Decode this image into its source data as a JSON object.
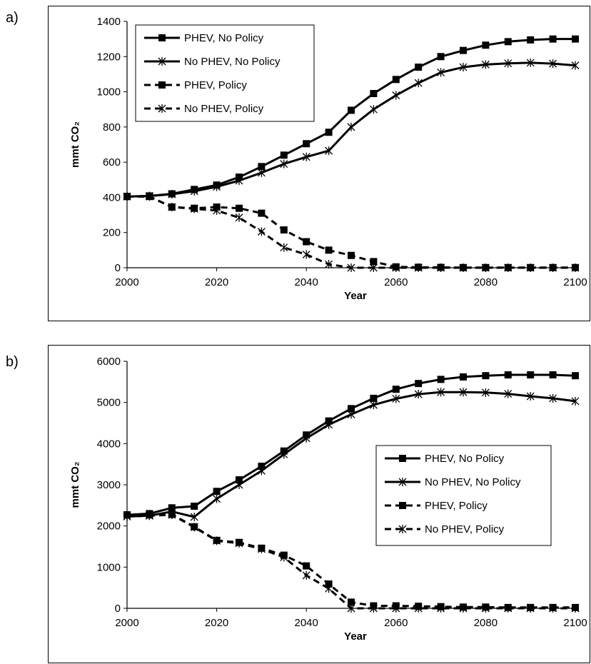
{
  "chart_data": [
    {
      "type": "line",
      "panel_label": "a)",
      "xlabel": "Year",
      "ylabel": "mmt CO₂",
      "xlim": [
        2000,
        2100
      ],
      "ylim": [
        0,
        1400
      ],
      "xticks": [
        2000,
        2020,
        2040,
        2060,
        2080,
        2100
      ],
      "yticks": [
        0,
        200,
        400,
        600,
        800,
        1000,
        1200,
        1400
      ],
      "grid": false,
      "legend_position": "top-left",
      "x": [
        2000,
        2005,
        2010,
        2015,
        2020,
        2025,
        2030,
        2035,
        2040,
        2045,
        2050,
        2055,
        2060,
        2065,
        2070,
        2075,
        2080,
        2085,
        2090,
        2095,
        2100
      ],
      "series": [
        {
          "name": "PHEV, No Policy",
          "style": "solid",
          "marker": "square",
          "values": [
            405,
            408,
            420,
            445,
            470,
            515,
            575,
            640,
            705,
            770,
            895,
            990,
            1070,
            1140,
            1200,
            1235,
            1265,
            1285,
            1295,
            1300,
            1300
          ]
        },
        {
          "name": "No PHEV, No Policy",
          "style": "solid",
          "marker": "star",
          "values": [
            405,
            408,
            418,
            435,
            460,
            495,
            540,
            590,
            630,
            665,
            800,
            900,
            980,
            1050,
            1110,
            1140,
            1155,
            1162,
            1165,
            1160,
            1150
          ]
        },
        {
          "name": "PHEV, Policy",
          "style": "dashed",
          "marker": "square",
          "values": [
            405,
            405,
            345,
            338,
            345,
            338,
            310,
            215,
            148,
            100,
            70,
            35,
            5,
            3,
            2,
            1,
            1,
            1,
            1,
            1,
            1
          ]
        },
        {
          "name": "No PHEV, Policy",
          "style": "dashed",
          "marker": "star",
          "values": [
            405,
            405,
            345,
            335,
            325,
            285,
            205,
            115,
            75,
            20,
            0,
            0,
            0,
            0,
            0,
            0,
            0,
            0,
            0,
            0,
            0
          ]
        }
      ]
    },
    {
      "type": "line",
      "panel_label": "b)",
      "xlabel": "Year",
      "ylabel": "mmt CO₂",
      "xlim": [
        2000,
        2100
      ],
      "ylim": [
        0,
        6000
      ],
      "xticks": [
        2000,
        2020,
        2040,
        2060,
        2080,
        2100
      ],
      "yticks": [
        0,
        1000,
        2000,
        3000,
        4000,
        5000,
        6000
      ],
      "grid": false,
      "legend_position": "right",
      "x": [
        2000,
        2005,
        2010,
        2015,
        2020,
        2025,
        2030,
        2035,
        2040,
        2045,
        2050,
        2055,
        2060,
        2065,
        2070,
        2075,
        2080,
        2085,
        2090,
        2095,
        2100
      ],
      "series": [
        {
          "name": "PHEV, No Policy",
          "style": "solid",
          "marker": "square",
          "values": [
            2270,
            2300,
            2440,
            2480,
            2840,
            3120,
            3450,
            3820,
            4210,
            4550,
            4850,
            5100,
            5320,
            5460,
            5560,
            5620,
            5650,
            5670,
            5670,
            5670,
            5650
          ]
        },
        {
          "name": "No PHEV, No Policy",
          "style": "solid",
          "marker": "star",
          "values": [
            2230,
            2250,
            2350,
            2220,
            2660,
            3000,
            3340,
            3740,
            4130,
            4460,
            4710,
            4940,
            5090,
            5200,
            5250,
            5250,
            5240,
            5210,
            5150,
            5100,
            5030
          ]
        },
        {
          "name": "PHEV, Policy",
          "style": "dashed",
          "marker": "square",
          "values": [
            2270,
            2270,
            2280,
            1980,
            1650,
            1600,
            1460,
            1290,
            1030,
            590,
            150,
            60,
            60,
            50,
            40,
            30,
            30,
            20,
            20,
            20,
            20
          ]
        },
        {
          "name": "No PHEV, Policy",
          "style": "dashed",
          "marker": "star",
          "values": [
            2230,
            2250,
            2270,
            1970,
            1640,
            1580,
            1440,
            1240,
            800,
            480,
            0,
            0,
            0,
            0,
            0,
            0,
            0,
            0,
            0,
            0,
            0
          ]
        }
      ]
    }
  ]
}
